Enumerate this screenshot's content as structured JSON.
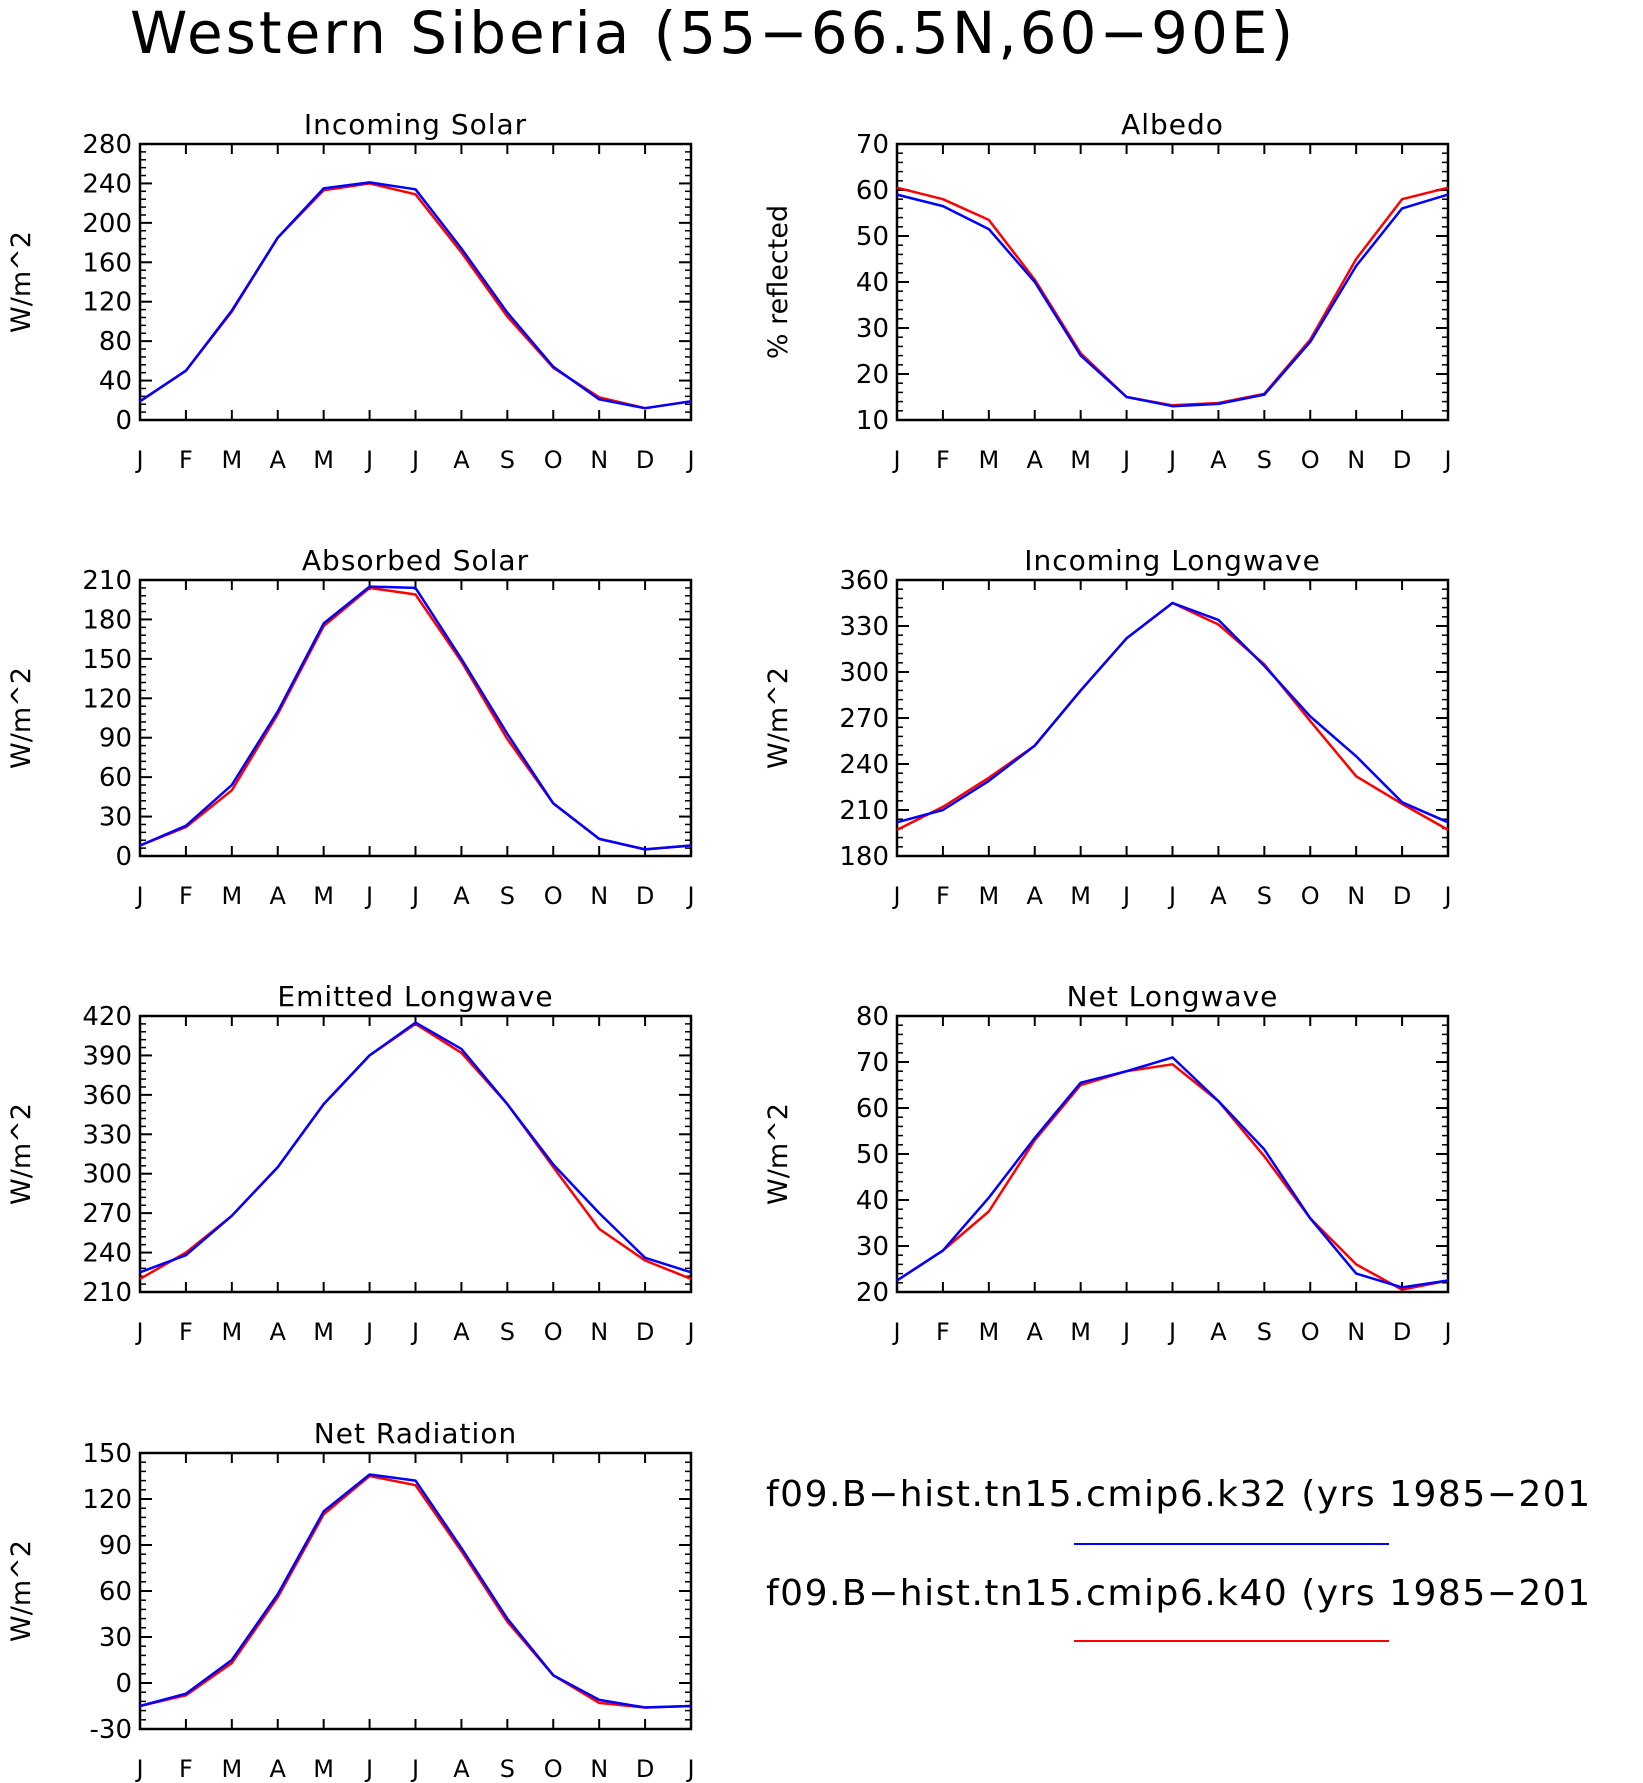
{
  "figure": {
    "title": "Western Siberia (55−66.5N,60−90E)"
  },
  "months": [
    "J",
    "F",
    "M",
    "A",
    "M",
    "J",
    "J",
    "A",
    "S",
    "O",
    "N",
    "D",
    "J"
  ],
  "legend": {
    "entries": [
      {
        "label": "f09.B−hist.tn15.cmip6.k32 (yrs 1985−201",
        "color": "#0000ff"
      },
      {
        "label": "f09.B−hist.tn15.cmip6.k40 (yrs 1985−201",
        "color": "#ff0000"
      }
    ]
  },
  "colors": {
    "k32": "#0000ff",
    "k40": "#ff0000"
  },
  "chart_data": [
    {
      "type": "line",
      "title": "Incoming Solar",
      "ylabel": "W/m^2",
      "ylim": [
        0,
        280
      ],
      "yticks": [
        0,
        40,
        80,
        120,
        160,
        200,
        240,
        280
      ],
      "series": [
        {
          "name": "f09.B−hist.tn15.cmip6.k32 (yrs 1985−201",
          "color": "#0000ff",
          "values": [
            19,
            50,
            111,
            185,
            235,
            241,
            234,
            174,
            109,
            54,
            21,
            12,
            19
          ]
        },
        {
          "name": "f09.B−hist.tn15.cmip6.k40 (yrs 1985−201",
          "color": "#ff0000",
          "values": [
            19,
            50,
            110,
            185,
            233,
            240,
            229,
            170,
            105,
            53,
            23,
            12,
            19
          ]
        }
      ]
    },
    {
      "type": "line",
      "title": "Albedo",
      "ylabel": "% reflected",
      "ylim": [
        10,
        70
      ],
      "yticks": [
        10,
        20,
        30,
        40,
        50,
        60,
        70
      ],
      "series": [
        {
          "name": "f09.B−hist.tn15.cmip6.k32 (yrs 1985−201",
          "color": "#0000ff",
          "values": [
            59,
            56.5,
            51.5,
            40,
            24,
            15,
            13,
            13.5,
            15.5,
            27,
            43.5,
            56,
            59
          ]
        },
        {
          "name": "f09.B−hist.tn15.cmip6.k40 (yrs 1985−201",
          "color": "#ff0000",
          "values": [
            60.5,
            58,
            53.5,
            40.5,
            24.5,
            15,
            13.2,
            13.7,
            15.7,
            27.5,
            45,
            58,
            60.5
          ]
        }
      ]
    },
    {
      "type": "line",
      "title": "Absorbed Solar",
      "ylabel": "W/m^2",
      "ylim": [
        0,
        210
      ],
      "yticks": [
        0,
        30,
        60,
        90,
        120,
        150,
        180,
        210
      ],
      "series": [
        {
          "name": "f09.B−hist.tn15.cmip6.k32 (yrs 1985−201",
          "color": "#0000ff",
          "values": [
            8,
            23,
            54,
            110,
            177,
            205,
            204,
            150,
            93,
            40,
            13,
            5,
            8
          ]
        },
        {
          "name": "f09.B−hist.tn15.cmip6.k40 (yrs 1985−201",
          "color": "#ff0000",
          "values": [
            8,
            22,
            50,
            108,
            175,
            204,
            199,
            148,
            89,
            40,
            13,
            5,
            8
          ]
        }
      ]
    },
    {
      "type": "line",
      "title": "Incoming Longwave",
      "ylabel": "W/m^2",
      "ylim": [
        180,
        360
      ],
      "yticks": [
        180,
        210,
        240,
        270,
        300,
        330,
        360
      ],
      "series": [
        {
          "name": "f09.B−hist.tn15.cmip6.k32 (yrs 1985−201",
          "color": "#0000ff",
          "values": [
            202,
            210,
            229,
            252,
            288,
            322,
            345,
            334,
            304,
            271,
            245,
            215,
            202
          ]
        },
        {
          "name": "f09.B−hist.tn15.cmip6.k40 (yrs 1985−201",
          "color": "#ff0000",
          "values": [
            197,
            212,
            231,
            252,
            288,
            322,
            345,
            331,
            305,
            268,
            232,
            214,
            197
          ]
        }
      ]
    },
    {
      "type": "line",
      "title": "Emitted Longwave",
      "ylabel": "W/m^2",
      "ylim": [
        210,
        420
      ],
      "yticks": [
        210,
        240,
        270,
        300,
        330,
        360,
        390,
        420
      ],
      "series": [
        {
          "name": "f09.B−hist.tn15.cmip6.k32 (yrs 1985−201",
          "color": "#0000ff",
          "values": [
            225,
            238,
            268,
            305,
            353,
            390,
            415,
            395,
            353,
            307,
            270,
            236,
            225
          ]
        },
        {
          "name": "f09.B−hist.tn15.cmip6.k40 (yrs 1985−201",
          "color": "#ff0000",
          "values": [
            220,
            240,
            268,
            305,
            353,
            390,
            414,
            392,
            353,
            305,
            258,
            234,
            220
          ]
        }
      ]
    },
    {
      "type": "line",
      "title": "Net Longwave",
      "ylabel": "W/m^2",
      "ylim": [
        20,
        80
      ],
      "yticks": [
        20,
        30,
        40,
        50,
        60,
        70,
        80
      ],
      "series": [
        {
          "name": "f09.B−hist.tn15.cmip6.k32 (yrs 1985−201",
          "color": "#0000ff",
          "values": [
            22.5,
            29,
            40.5,
            53.5,
            65.5,
            68,
            71,
            61.5,
            51,
            36,
            24,
            21,
            22.5
          ]
        },
        {
          "name": "f09.B−hist.tn15.cmip6.k40 (yrs 1985−201",
          "color": "#ff0000",
          "values": [
            22.5,
            29,
            37.5,
            53,
            65,
            68,
            69.5,
            61.5,
            49.5,
            36,
            26,
            20.5,
            22.5
          ]
        }
      ]
    },
    {
      "type": "line",
      "title": "Net Radiation",
      "ylabel": "W/m^2",
      "ylim": [
        -30,
        150
      ],
      "yticks": [
        -30,
        0,
        30,
        60,
        90,
        120,
        150
      ],
      "series": [
        {
          "name": "f09.B−hist.tn15.cmip6.k32 (yrs 1985−201",
          "color": "#0000ff",
          "values": [
            -15,
            -7,
            15,
            58,
            112,
            136,
            132,
            88,
            42,
            5,
            -11,
            -16,
            -15
          ]
        },
        {
          "name": "f09.B−hist.tn15.cmip6.k40 (yrs 1985−201",
          "color": "#ff0000",
          "values": [
            -15,
            -8,
            13,
            56,
            110,
            135,
            129,
            86,
            40,
            5,
            -13,
            -16,
            -15
          ]
        }
      ]
    }
  ]
}
